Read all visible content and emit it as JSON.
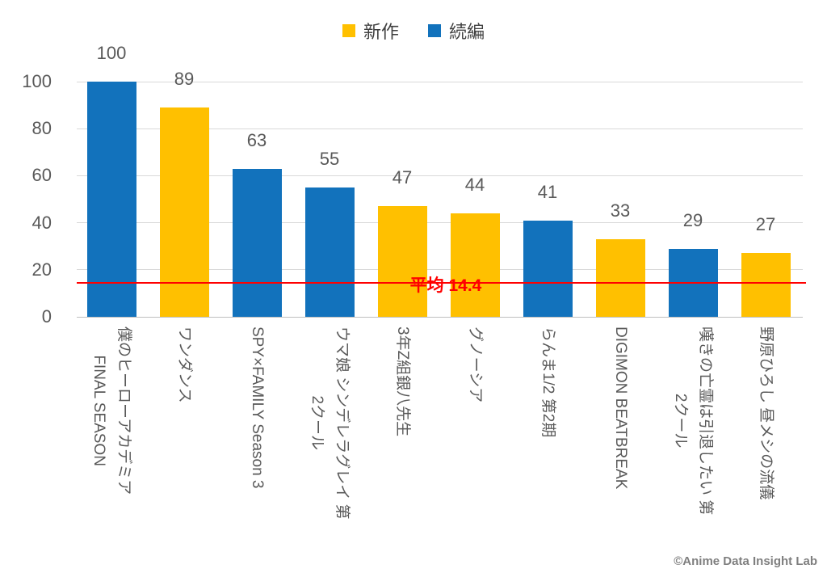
{
  "legend": {
    "items": [
      {
        "label": "新作",
        "color": "#FFC000"
      },
      {
        "label": "続編",
        "color": "#1272BC"
      }
    ]
  },
  "chart_data": {
    "type": "bar",
    "title": "",
    "categories": [
      "僕のヒーローアカデミア FINAL SEASON",
      "ワンダンス",
      "SPY×FAMILY Season 3",
      "ウマ娘 シンデレラグレイ 第2クール",
      "3年Z組銀八先生",
      "グノーシア",
      "らんま1/2 第2期",
      "DIGIMON BEATBREAK",
      "嘆きの亡霊は引退したい 第2クール",
      "野原ひろし 昼メシの流儀"
    ],
    "category_label_lines": [
      [
        "僕のヒーローアカデミア",
        "FINAL SEASON"
      ],
      [
        "ワンダンス"
      ],
      [
        "SPY×FAMILY Season 3"
      ],
      [
        "ウマ娘 シンデレラグレイ 第",
        "2クール"
      ],
      [
        "3年Z組銀八先生"
      ],
      [
        "グノーシア"
      ],
      [
        "らんま1/2 第2期"
      ],
      [
        "DIGIMON BEATBREAK"
      ],
      [
        "嘆きの亡霊は引退したい 第",
        "2クール"
      ],
      [
        "野原ひろし 昼メシの流儀"
      ]
    ],
    "values": [
      100,
      89,
      63,
      55,
      47,
      44,
      41,
      33,
      29,
      27
    ],
    "bar_series": [
      "続編",
      "新作",
      "続編",
      "続編",
      "新作",
      "新作",
      "続編",
      "新作",
      "続編",
      "新作"
    ],
    "series_colors": {
      "新作": "#FFC000",
      "続編": "#1272BC"
    },
    "ylim": [
      0,
      100
    ],
    "yticks": [
      0,
      20,
      40,
      60,
      80,
      100
    ],
    "grid": true,
    "legend_position": "top",
    "average_line": {
      "value": 14.4,
      "label": "平均 14.4",
      "color": "#FF0000"
    }
  },
  "watermark": "©Anime Data Insight Lab"
}
